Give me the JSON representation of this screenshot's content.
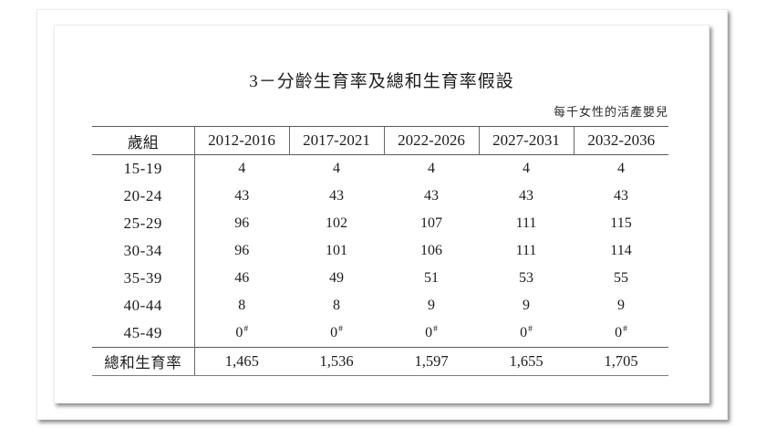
{
  "document": {
    "title": "3－分齡生育率及總和生育率假設",
    "unit_note": "每千女性的活產嬰兒"
  },
  "table": {
    "columns": [
      "歲組",
      "2012-2016",
      "2017-2021",
      "2022-2026",
      "2027-2031",
      "2032-2036"
    ],
    "rows": [
      {
        "label": "15-19",
        "values": [
          "4",
          "4",
          "4",
          "4",
          "4"
        ]
      },
      {
        "label": "20-24",
        "values": [
          "43",
          "43",
          "43",
          "43",
          "43"
        ]
      },
      {
        "label": "25-29",
        "values": [
          "96",
          "102",
          "107",
          "111",
          "115"
        ]
      },
      {
        "label": "30-34",
        "values": [
          "96",
          "101",
          "106",
          "111",
          "114"
        ]
      },
      {
        "label": "35-39",
        "values": [
          "46",
          "49",
          "51",
          "53",
          "55"
        ]
      },
      {
        "label": "40-44",
        "values": [
          "8",
          "8",
          "9",
          "9",
          "9"
        ]
      },
      {
        "label": "45-49",
        "values": [
          "0",
          "0",
          "0",
          "0",
          "0"
        ],
        "superscript": "#"
      }
    ],
    "total_row": {
      "label": "總和生育率",
      "values": [
        "1,465",
        "1,536",
        "1,597",
        "1,655",
        "1,705"
      ]
    }
  }
}
